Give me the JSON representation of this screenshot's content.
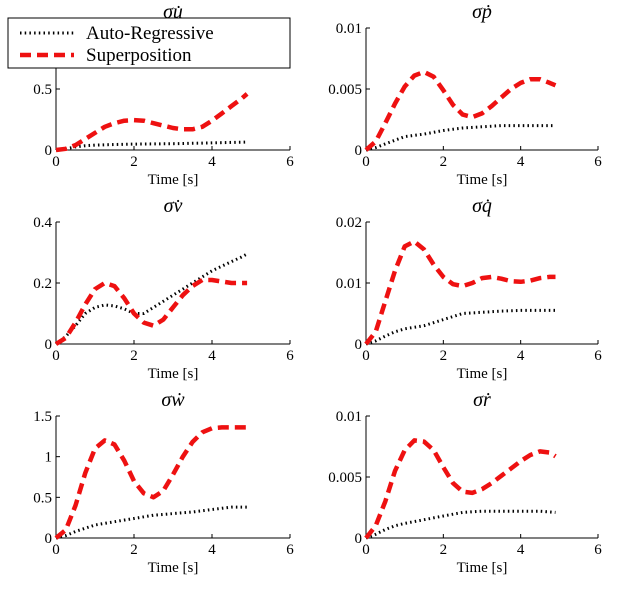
{
  "chart_data": [
    {
      "type": "line",
      "title": "σu̇",
      "xlabel": "Time [s]",
      "ylabel": "",
      "xlim": [
        0,
        6
      ],
      "ylim": [
        0,
        1
      ],
      "xticks": [
        "0",
        "2",
        "4",
        "6"
      ],
      "yticks": [
        "0",
        "0.5"
      ],
      "series": [
        {
          "name": "Auto-Regressive",
          "color": "#000000",
          "style": "dotted",
          "x": [
            0,
            0.25,
            0.5,
            0.75,
            1,
            1.5,
            2,
            2.5,
            3,
            3.5,
            4,
            4.5,
            4.9
          ],
          "y": [
            0,
            0.01,
            0.025,
            0.035,
            0.04,
            0.045,
            0.048,
            0.05,
            0.052,
            0.055,
            0.058,
            0.062,
            0.065
          ]
        },
        {
          "name": "Superposition",
          "color": "#ee1111",
          "style": "dashed",
          "x": [
            0,
            0.25,
            0.5,
            0.75,
            1,
            1.25,
            1.5,
            1.75,
            2,
            2.25,
            2.5,
            2.75,
            3,
            3.25,
            3.5,
            3.75,
            4,
            4.25,
            4.5,
            4.75,
            4.9
          ],
          "y": [
            0,
            0.01,
            0.04,
            0.09,
            0.14,
            0.19,
            0.22,
            0.24,
            0.245,
            0.24,
            0.22,
            0.2,
            0.18,
            0.17,
            0.17,
            0.19,
            0.24,
            0.3,
            0.36,
            0.42,
            0.46
          ]
        }
      ]
    },
    {
      "type": "line",
      "title": "σṗ",
      "xlabel": "Time [s]",
      "ylabel": "",
      "xlim": [
        0,
        6
      ],
      "ylim": [
        0,
        0.01
      ],
      "xticks": [
        "0",
        "2",
        "4",
        "6"
      ],
      "yticks": [
        "0",
        "0.005",
        "0.01"
      ],
      "series": [
        {
          "name": "Auto-Regressive",
          "color": "#000000",
          "style": "dotted",
          "x": [
            0,
            0.25,
            0.5,
            0.75,
            1,
            1.5,
            2,
            2.5,
            3,
            3.5,
            4,
            4.5,
            4.9
          ],
          "y": [
            0,
            0.0002,
            0.0005,
            0.0008,
            0.0011,
            0.0013,
            0.0016,
            0.0018,
            0.0019,
            0.002,
            0.002,
            0.002,
            0.002
          ]
        },
        {
          "name": "Superposition",
          "color": "#ee1111",
          "style": "dashed",
          "x": [
            0,
            0.25,
            0.5,
            0.75,
            1,
            1.25,
            1.5,
            1.75,
            2,
            2.25,
            2.5,
            2.75,
            3,
            3.25,
            3.5,
            3.75,
            4,
            4.25,
            4.5,
            4.75,
            4.9
          ],
          "y": [
            0,
            0.0007,
            0.0022,
            0.0038,
            0.0052,
            0.0061,
            0.0064,
            0.006,
            0.0049,
            0.0037,
            0.0029,
            0.0027,
            0.003,
            0.0036,
            0.0043,
            0.005,
            0.0055,
            0.0058,
            0.0058,
            0.0055,
            0.0053
          ]
        }
      ]
    },
    {
      "type": "line",
      "title": "σv̇",
      "xlabel": "Time [s]",
      "ylabel": "",
      "xlim": [
        0,
        6
      ],
      "ylim": [
        0,
        0.4
      ],
      "xticks": [
        "0",
        "2",
        "4",
        "6"
      ],
      "yticks": [
        "0",
        "0.2",
        "0.4"
      ],
      "series": [
        {
          "name": "Auto-Regressive",
          "color": "#000000",
          "style": "dotted",
          "x": [
            0,
            0.25,
            0.5,
            0.75,
            1,
            1.25,
            1.5,
            1.75,
            2,
            2.25,
            2.5,
            2.75,
            3,
            3.25,
            3.5,
            3.75,
            4,
            4.25,
            4.5,
            4.75,
            4.9
          ],
          "y": [
            0,
            0.025,
            0.06,
            0.1,
            0.12,
            0.128,
            0.125,
            0.115,
            0.1,
            0.1,
            0.12,
            0.14,
            0.16,
            0.18,
            0.2,
            0.22,
            0.24,
            0.255,
            0.27,
            0.285,
            0.295
          ]
        },
        {
          "name": "Superposition",
          "color": "#ee1111",
          "style": "dashed",
          "x": [
            0,
            0.25,
            0.5,
            0.75,
            1,
            1.25,
            1.5,
            1.75,
            2,
            2.25,
            2.5,
            2.75,
            3,
            3.25,
            3.5,
            3.75,
            4,
            4.25,
            4.5,
            4.75,
            4.9
          ],
          "y": [
            0,
            0.02,
            0.07,
            0.13,
            0.18,
            0.2,
            0.19,
            0.15,
            0.1,
            0.07,
            0.06,
            0.08,
            0.12,
            0.16,
            0.19,
            0.21,
            0.21,
            0.205,
            0.2,
            0.2,
            0.2
          ]
        }
      ]
    },
    {
      "type": "line",
      "title": "σq̇",
      "xlabel": "Time [s]",
      "ylabel": "",
      "xlim": [
        0,
        6
      ],
      "ylim": [
        0,
        0.02
      ],
      "xticks": [
        "0",
        "2",
        "4",
        "6"
      ],
      "yticks": [
        "0",
        "0.01",
        "0.02"
      ],
      "series": [
        {
          "name": "Auto-Regressive",
          "color": "#000000",
          "style": "dotted",
          "x": [
            0,
            0.25,
            0.5,
            0.75,
            1,
            1.5,
            2,
            2.5,
            3,
            3.5,
            4,
            4.5,
            4.9
          ],
          "y": [
            0,
            0.0005,
            0.0013,
            0.002,
            0.0025,
            0.003,
            0.004,
            0.005,
            0.0052,
            0.0054,
            0.0055,
            0.0055,
            0.0055
          ]
        },
        {
          "name": "Superposition",
          "color": "#ee1111",
          "style": "dashed",
          "x": [
            0,
            0.25,
            0.5,
            0.75,
            1,
            1.25,
            1.5,
            1.75,
            2,
            2.25,
            2.5,
            2.75,
            3,
            3.25,
            3.5,
            3.75,
            4,
            4.25,
            4.5,
            4.75,
            4.9
          ],
          "y": [
            0,
            0.002,
            0.007,
            0.012,
            0.016,
            0.0168,
            0.0155,
            0.013,
            0.011,
            0.0098,
            0.0095,
            0.01,
            0.0108,
            0.011,
            0.0107,
            0.0103,
            0.0102,
            0.0104,
            0.0108,
            0.011,
            0.011
          ]
        }
      ]
    },
    {
      "type": "line",
      "title": "σẇ",
      "xlabel": "Time [s]",
      "ylabel": "",
      "xlim": [
        0,
        6
      ],
      "ylim": [
        0,
        1.5
      ],
      "xticks": [
        "0",
        "2",
        "4",
        "6"
      ],
      "yticks": [
        "0",
        "0.5",
        "1",
        "1.5"
      ],
      "series": [
        {
          "name": "Auto-Regressive",
          "color": "#000000",
          "style": "dotted",
          "x": [
            0,
            0.25,
            0.5,
            0.75,
            1,
            1.5,
            2,
            2.5,
            3,
            3.5,
            4,
            4.5,
            4.9
          ],
          "y": [
            0,
            0.03,
            0.08,
            0.12,
            0.16,
            0.2,
            0.24,
            0.28,
            0.3,
            0.32,
            0.35,
            0.38,
            0.38
          ]
        },
        {
          "name": "Superposition",
          "color": "#ee1111",
          "style": "dashed",
          "x": [
            0,
            0.25,
            0.5,
            0.75,
            1,
            1.25,
            1.5,
            1.75,
            2,
            2.25,
            2.5,
            2.75,
            3,
            3.25,
            3.5,
            3.75,
            4,
            4.25,
            4.5,
            4.75,
            4.9
          ],
          "y": [
            0,
            0.1,
            0.4,
            0.8,
            1.1,
            1.2,
            1.15,
            0.95,
            0.7,
            0.55,
            0.5,
            0.58,
            0.78,
            1.0,
            1.18,
            1.3,
            1.35,
            1.36,
            1.36,
            1.36,
            1.36
          ]
        }
      ]
    },
    {
      "type": "line",
      "title": "σṙ",
      "xlabel": "Time [s]",
      "ylabel": "",
      "xlim": [
        0,
        6
      ],
      "ylim": [
        0,
        0.01
      ],
      "xticks": [
        "0",
        "2",
        "4",
        "6"
      ],
      "yticks": [
        "0",
        "0.005",
        "0.01"
      ],
      "series": [
        {
          "name": "Auto-Regressive",
          "color": "#000000",
          "style": "dotted",
          "x": [
            0,
            0.25,
            0.5,
            0.75,
            1,
            1.5,
            2,
            2.5,
            3,
            3.5,
            4,
            4.5,
            4.9
          ],
          "y": [
            0,
            0.0003,
            0.0007,
            0.001,
            0.0012,
            0.0015,
            0.0018,
            0.0021,
            0.0022,
            0.0022,
            0.0022,
            0.0022,
            0.0021
          ]
        },
        {
          "name": "Superposition",
          "color": "#ee1111",
          "style": "dashed",
          "x": [
            0,
            0.25,
            0.5,
            0.75,
            1,
            1.25,
            1.5,
            1.75,
            2,
            2.25,
            2.5,
            2.75,
            3,
            3.25,
            3.5,
            3.75,
            4,
            4.25,
            4.5,
            4.75,
            4.9
          ],
          "y": [
            0,
            0.001,
            0.003,
            0.0055,
            0.0072,
            0.008,
            0.0079,
            0.0072,
            0.0058,
            0.0045,
            0.0038,
            0.0037,
            0.004,
            0.0045,
            0.0051,
            0.0057,
            0.0063,
            0.0068,
            0.0071,
            0.007,
            0.0067
          ]
        }
      ]
    }
  ],
  "legend": {
    "entries": [
      {
        "label": "Auto-Regressive",
        "color": "#000000",
        "style": "dotted"
      },
      {
        "label": "Superposition",
        "color": "#ee1111",
        "style": "dashed"
      }
    ]
  }
}
